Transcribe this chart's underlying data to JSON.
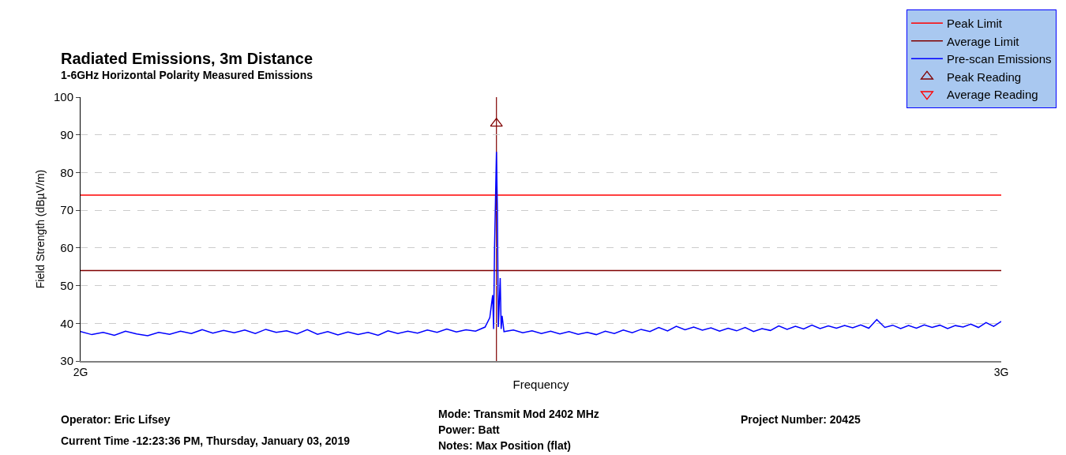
{
  "chart_data": {
    "type": "line",
    "title": "Radiated Emissions, 3m Distance",
    "subtitle": "1-6GHz Horizontal Polarity Measured Emissions",
    "xlabel": "Frequency",
    "ylabel": "Field Strength (dBµV/m)",
    "log": "x",
    "xlim": [
      2,
      3
    ],
    "xticks": [
      {
        "value": 2,
        "label": "2G"
      },
      {
        "value": 3,
        "label": "3G"
      }
    ],
    "ylim": [
      30,
      100
    ],
    "yticks": [
      30,
      40,
      50,
      60,
      70,
      80,
      90,
      100
    ],
    "grid": "y",
    "legend": "top right",
    "series": [
      {
        "name": "Peak Limit",
        "color": "#ff0000",
        "x": [
          2,
          3
        ],
        "values": [
          74,
          74
        ]
      },
      {
        "name": "Average Limit",
        "color": "#800000",
        "x": [
          2,
          3
        ],
        "values": [
          54,
          54
        ]
      },
      {
        "name": "Pre-scan Emissions",
        "color": "#0000ff",
        "x": [
          2.0,
          2.01,
          2.02,
          2.03,
          2.04,
          2.05,
          2.06,
          2.07,
          2.08,
          2.09,
          2.1,
          2.11,
          2.12,
          2.13,
          2.14,
          2.15,
          2.16,
          2.17,
          2.18,
          2.19,
          2.2,
          2.21,
          2.22,
          2.23,
          2.24,
          2.25,
          2.26,
          2.27,
          2.28,
          2.29,
          2.3,
          2.31,
          2.32,
          2.33,
          2.34,
          2.35,
          2.36,
          2.37,
          2.38,
          2.39,
          2.395,
          2.398,
          2.399,
          2.4,
          2.402,
          2.403,
          2.404,
          2.406,
          2.407,
          2.408,
          2.41,
          2.42,
          2.43,
          2.44,
          2.45,
          2.46,
          2.47,
          2.48,
          2.49,
          2.5,
          2.51,
          2.52,
          2.53,
          2.54,
          2.55,
          2.56,
          2.57,
          2.58,
          2.59,
          2.6,
          2.61,
          2.62,
          2.63,
          2.64,
          2.65,
          2.66,
          2.67,
          2.68,
          2.69,
          2.7,
          2.71,
          2.72,
          2.73,
          2.74,
          2.75,
          2.76,
          2.77,
          2.78,
          2.79,
          2.8,
          2.81,
          2.82,
          2.83,
          2.84,
          2.85,
          2.86,
          2.87,
          2.88,
          2.89,
          2.9,
          2.91,
          2.92,
          2.93,
          2.94,
          2.95,
          2.96,
          2.97,
          2.98,
          2.99,
          3.0
        ],
        "values": [
          37.8,
          37.0,
          37.6,
          36.8,
          37.9,
          37.2,
          36.7,
          37.6,
          37.1,
          37.9,
          37.3,
          38.3,
          37.4,
          38.1,
          37.5,
          38.2,
          37.3,
          38.4,
          37.6,
          38.0,
          37.2,
          38.3,
          37.1,
          37.8,
          36.9,
          37.7,
          37.0,
          37.6,
          36.8,
          38.0,
          37.3,
          37.9,
          37.4,
          38.2,
          37.6,
          38.5,
          37.7,
          38.3,
          37.9,
          39.0,
          41.5,
          47.5,
          38.5,
          60,
          85.5,
          70,
          39,
          52,
          38.5,
          42,
          37.8,
          38.2,
          37.5,
          38.0,
          37.3,
          37.9,
          37.2,
          37.8,
          37.1,
          37.6,
          37.0,
          37.9,
          37.3,
          38.2,
          37.5,
          38.4,
          37.8,
          38.9,
          38.0,
          39.2,
          38.3,
          39.0,
          38.2,
          38.8,
          37.9,
          38.7,
          38.0,
          38.9,
          37.8,
          38.6,
          38.1,
          39.3,
          38.4,
          39.2,
          38.5,
          39.5,
          38.6,
          39.3,
          38.7,
          39.4,
          38.8,
          39.6,
          38.7,
          41.0,
          38.9,
          39.5,
          38.6,
          39.4,
          38.7,
          39.6,
          38.9,
          39.5,
          38.6,
          39.4,
          39.0,
          39.8,
          38.9,
          40.2,
          39.2,
          40.5
        ]
      },
      {
        "name": "Peak Reading",
        "color": "#800000",
        "type": "scatter",
        "marker": "triangle",
        "x": [
          2.402
        ],
        "values": [
          93
        ]
      },
      {
        "name": "Average Reading",
        "color": "#ff0000",
        "type": "scatter",
        "marker": "triangle-down"
      }
    ],
    "ref_lines": [
      {
        "axis": "x",
        "value": 2.402,
        "color": "#800000"
      }
    ],
    "annotations": [
      "Operator: Eric Lifsey",
      "Current Time -12:23:36 PM, Thursday, January 03, 2019",
      "Mode: Transmit Mod 2402 MHz",
      "Power: Batt",
      "Notes: Max Position (flat)",
      "Project Number: 20425"
    ]
  }
}
